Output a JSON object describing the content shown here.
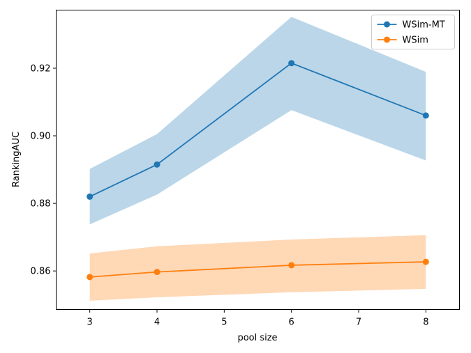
{
  "chart_data": {
    "type": "line",
    "x": [
      3,
      4,
      6,
      8
    ],
    "xlabel": "pool size",
    "ylabel": "RankingAUC",
    "xlim": [
      2.5,
      8.5
    ],
    "ylim": [
      0.8486,
      0.9372
    ],
    "xticks": [
      3,
      4,
      5,
      6,
      7,
      8
    ],
    "yticks": [
      0.86,
      0.88,
      0.9,
      0.92
    ],
    "xtick_labels": [
      "3",
      "4",
      "5",
      "6",
      "7",
      "8"
    ],
    "ytick_labels": [
      "0.86",
      "0.88",
      "0.90",
      "0.92"
    ],
    "grid": false,
    "legend_position": "top-right",
    "series": [
      {
        "name": "WSim-MT",
        "color": "#1f77b4",
        "band_color": "#1f77b4",
        "values": [
          0.882,
          0.8915,
          0.9215,
          0.906
        ],
        "lower": [
          0.8738,
          0.8826,
          0.9076,
          0.8927
        ],
        "upper": [
          0.8902,
          0.9005,
          0.9352,
          0.9189
        ]
      },
      {
        "name": "WSim",
        "color": "#ff7f0e",
        "band_color": "#ff7f0e",
        "values": [
          0.8582,
          0.8597,
          0.8617,
          0.8627
        ],
        "lower": [
          0.8512,
          0.8522,
          0.8537,
          0.8547
        ],
        "upper": [
          0.8652,
          0.8673,
          0.8693,
          0.8706
        ]
      }
    ]
  }
}
